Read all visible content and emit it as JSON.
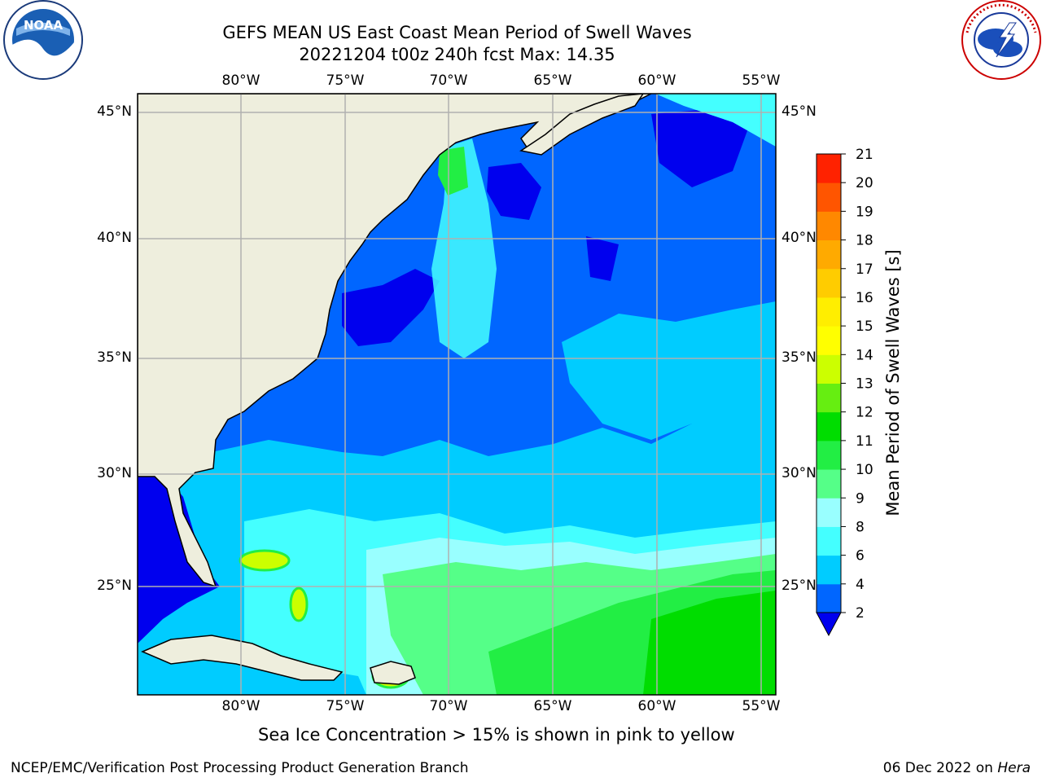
{
  "header": {
    "title_line1": "GEFS MEAN US East Coast Mean Period of Swell Waves",
    "title_line2": "20221204 t00z 240h fcst   Max: 14.35"
  },
  "logos": {
    "left": {
      "name": "noaa-logo",
      "text": "NOAA"
    },
    "right": {
      "name": "nws-logo",
      "text": "NATIONAL WEATHER SERVICE"
    }
  },
  "map": {
    "lon_labels": [
      "80°W",
      "75°W",
      "70°W",
      "65°W",
      "60°W",
      "55°W"
    ],
    "lat_labels": [
      "45°N",
      "40°N",
      "35°N",
      "30°N",
      "25°N"
    ],
    "land_color": "#eeeedd",
    "grid_color": "#b0b0b0"
  },
  "colorbar": {
    "label": "Mean Period of Swell Waves [s]",
    "ticks": [
      "2",
      "4",
      "6",
      "8",
      "9",
      "10",
      "11",
      "12",
      "13",
      "14",
      "15",
      "16",
      "17",
      "18",
      "19",
      "20",
      "21"
    ],
    "colors": [
      "#0066ff",
      "#00ccff",
      "#44ffff",
      "#99ffff",
      "#55ff88",
      "#22ee44",
      "#00dd00",
      "#66ee11",
      "#ccff00",
      "#ffff00",
      "#ffee00",
      "#ffcc00",
      "#ffaa00",
      "#ff8800",
      "#ff5500",
      "#ff2200"
    ],
    "under_color": "#0000ee"
  },
  "note": "Sea Ice Concentration > 15% is shown in pink to yellow",
  "footer": {
    "left": "NCEP/EMC/Verification Post Processing Product Generation Branch",
    "right_prefix": "06 Dec 2022 on ",
    "right_italic": "Hera"
  }
}
